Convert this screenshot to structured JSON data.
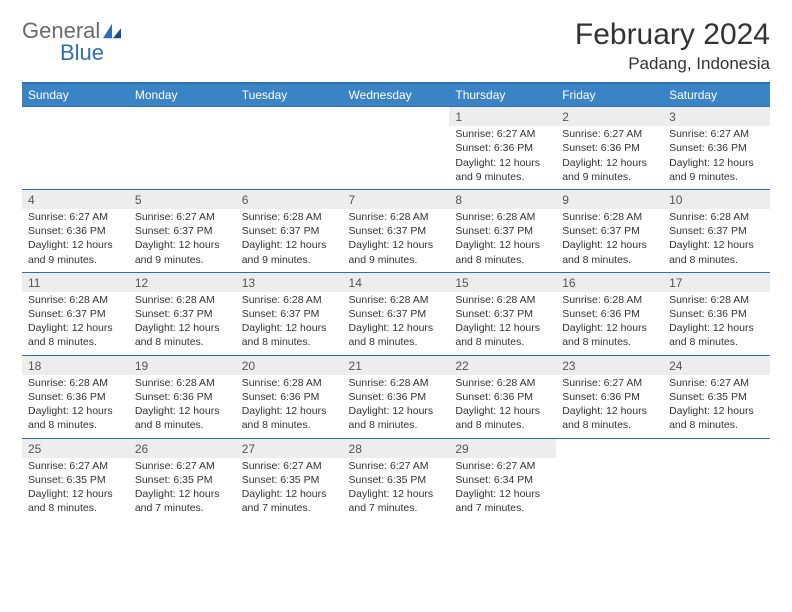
{
  "brand": {
    "part1": "General",
    "part2": "Blue"
  },
  "title": "February 2024",
  "location": "Padang, Indonesia",
  "colors": {
    "header_blue": "#3a84c6",
    "rule_blue": "#2f6fb3",
    "daynum_bg": "#ededed",
    "text": "#333333",
    "logo_gray": "#6a6a6a",
    "logo_blue": "#2f6fb3",
    "page_bg": "#ffffff"
  },
  "typography": {
    "title_fontsize": 30,
    "location_fontsize": 17,
    "dayheader_fontsize": 12,
    "daynum_fontsize": 12,
    "cell_fontsize": 10.5
  },
  "weekday_labels": [
    "Sunday",
    "Monday",
    "Tuesday",
    "Wednesday",
    "Thursday",
    "Friday",
    "Saturday"
  ],
  "weeks": [
    [
      null,
      null,
      null,
      null,
      {
        "n": "1",
        "sr": "6:27 AM",
        "ss": "6:36 PM",
        "dl": "12 hours and 9 minutes."
      },
      {
        "n": "2",
        "sr": "6:27 AM",
        "ss": "6:36 PM",
        "dl": "12 hours and 9 minutes."
      },
      {
        "n": "3",
        "sr": "6:27 AM",
        "ss": "6:36 PM",
        "dl": "12 hours and 9 minutes."
      }
    ],
    [
      {
        "n": "4",
        "sr": "6:27 AM",
        "ss": "6:36 PM",
        "dl": "12 hours and 9 minutes."
      },
      {
        "n": "5",
        "sr": "6:27 AM",
        "ss": "6:37 PM",
        "dl": "12 hours and 9 minutes."
      },
      {
        "n": "6",
        "sr": "6:28 AM",
        "ss": "6:37 PM",
        "dl": "12 hours and 9 minutes."
      },
      {
        "n": "7",
        "sr": "6:28 AM",
        "ss": "6:37 PM",
        "dl": "12 hours and 9 minutes."
      },
      {
        "n": "8",
        "sr": "6:28 AM",
        "ss": "6:37 PM",
        "dl": "12 hours and 8 minutes."
      },
      {
        "n": "9",
        "sr": "6:28 AM",
        "ss": "6:37 PM",
        "dl": "12 hours and 8 minutes."
      },
      {
        "n": "10",
        "sr": "6:28 AM",
        "ss": "6:37 PM",
        "dl": "12 hours and 8 minutes."
      }
    ],
    [
      {
        "n": "11",
        "sr": "6:28 AM",
        "ss": "6:37 PM",
        "dl": "12 hours and 8 minutes."
      },
      {
        "n": "12",
        "sr": "6:28 AM",
        "ss": "6:37 PM",
        "dl": "12 hours and 8 minutes."
      },
      {
        "n": "13",
        "sr": "6:28 AM",
        "ss": "6:37 PM",
        "dl": "12 hours and 8 minutes."
      },
      {
        "n": "14",
        "sr": "6:28 AM",
        "ss": "6:37 PM",
        "dl": "12 hours and 8 minutes."
      },
      {
        "n": "15",
        "sr": "6:28 AM",
        "ss": "6:37 PM",
        "dl": "12 hours and 8 minutes."
      },
      {
        "n": "16",
        "sr": "6:28 AM",
        "ss": "6:36 PM",
        "dl": "12 hours and 8 minutes."
      },
      {
        "n": "17",
        "sr": "6:28 AM",
        "ss": "6:36 PM",
        "dl": "12 hours and 8 minutes."
      }
    ],
    [
      {
        "n": "18",
        "sr": "6:28 AM",
        "ss": "6:36 PM",
        "dl": "12 hours and 8 minutes."
      },
      {
        "n": "19",
        "sr": "6:28 AM",
        "ss": "6:36 PM",
        "dl": "12 hours and 8 minutes."
      },
      {
        "n": "20",
        "sr": "6:28 AM",
        "ss": "6:36 PM",
        "dl": "12 hours and 8 minutes."
      },
      {
        "n": "21",
        "sr": "6:28 AM",
        "ss": "6:36 PM",
        "dl": "12 hours and 8 minutes."
      },
      {
        "n": "22",
        "sr": "6:28 AM",
        "ss": "6:36 PM",
        "dl": "12 hours and 8 minutes."
      },
      {
        "n": "23",
        "sr": "6:27 AM",
        "ss": "6:36 PM",
        "dl": "12 hours and 8 minutes."
      },
      {
        "n": "24",
        "sr": "6:27 AM",
        "ss": "6:35 PM",
        "dl": "12 hours and 8 minutes."
      }
    ],
    [
      {
        "n": "25",
        "sr": "6:27 AM",
        "ss": "6:35 PM",
        "dl": "12 hours and 8 minutes."
      },
      {
        "n": "26",
        "sr": "6:27 AM",
        "ss": "6:35 PM",
        "dl": "12 hours and 7 minutes."
      },
      {
        "n": "27",
        "sr": "6:27 AM",
        "ss": "6:35 PM",
        "dl": "12 hours and 7 minutes."
      },
      {
        "n": "28",
        "sr": "6:27 AM",
        "ss": "6:35 PM",
        "dl": "12 hours and 7 minutes."
      },
      {
        "n": "29",
        "sr": "6:27 AM",
        "ss": "6:34 PM",
        "dl": "12 hours and 7 minutes."
      },
      null,
      null
    ]
  ],
  "labels": {
    "sunrise": "Sunrise:",
    "sunset": "Sunset:",
    "daylight": "Daylight:"
  }
}
